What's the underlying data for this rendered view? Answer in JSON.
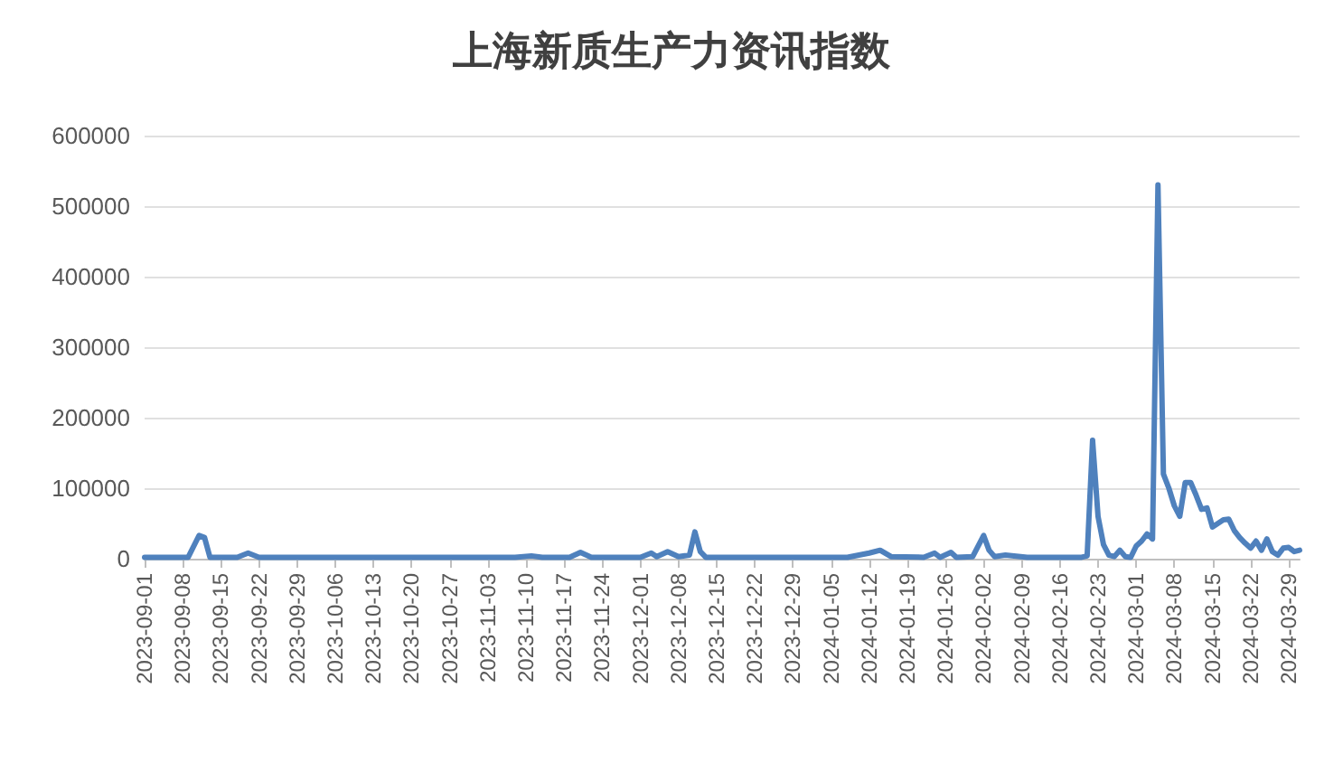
{
  "chart_data": {
    "type": "line",
    "title": "上海新质生产力资讯指数",
    "x": [
      "2023-09-01",
      "2023-09-09",
      "2023-09-11",
      "2023-09-12",
      "2023-09-13",
      "2023-09-18",
      "2023-09-20",
      "2023-09-22",
      "2023-11-08",
      "2023-11-11",
      "2023-11-13",
      "2023-11-18",
      "2023-11-20",
      "2023-11-22",
      "2023-12-01",
      "2023-12-03",
      "2023-12-04",
      "2023-12-06",
      "2023-12-08",
      "2023-12-10",
      "2023-12-11",
      "2023-12-12",
      "2023-12-13",
      "2024-01-08",
      "2024-01-12",
      "2024-01-14",
      "2024-01-16",
      "2024-01-22",
      "2024-01-24",
      "2024-01-25",
      "2024-01-27",
      "2024-01-28",
      "2024-01-31",
      "2024-02-02",
      "2024-02-03",
      "2024-02-04",
      "2024-02-06",
      "2024-02-10",
      "2024-02-20",
      "2024-02-21",
      "2024-02-22",
      "2024-02-23",
      "2024-02-24",
      "2024-02-25",
      "2024-02-26",
      "2024-02-27",
      "2024-02-28",
      "2024-02-29",
      "2024-03-01",
      "2024-03-02",
      "2024-03-03",
      "2024-03-04",
      "2024-03-05",
      "2024-03-06",
      "2024-03-07",
      "2024-03-08",
      "2024-03-09",
      "2024-03-10",
      "2024-03-11",
      "2024-03-12",
      "2024-03-13",
      "2024-03-14",
      "2024-03-15",
      "2024-03-16",
      "2024-03-17",
      "2024-03-18",
      "2024-03-19",
      "2024-03-20",
      "2024-03-21",
      "2024-03-22",
      "2024-03-23",
      "2024-03-24",
      "2024-03-25",
      "2024-03-26",
      "2024-03-27",
      "2024-03-28",
      "2024-03-29",
      "2024-03-30",
      "2024-03-31"
    ],
    "series": [
      {
        "color": "#4f81bd",
        "values": [
          2000,
          2000,
          33000,
          30000,
          2000,
          2000,
          8000,
          2000,
          2000,
          4000,
          2000,
          2000,
          9000,
          2000,
          2000,
          8000,
          3000,
          10000,
          3000,
          5000,
          38000,
          10000,
          2000,
          2000,
          8000,
          12000,
          3000,
          2000,
          8000,
          2000,
          9000,
          2000,
          3000,
          33000,
          12000,
          3000,
          5000,
          2000,
          2000,
          4000,
          168000,
          60000,
          20000,
          5000,
          3000,
          12000,
          3000,
          2000,
          18000,
          25000,
          35000,
          28000,
          530000,
          120000,
          100000,
          75000,
          60000,
          108000,
          108000,
          90000,
          70000,
          72000,
          45000,
          50000,
          55000,
          56000,
          40000,
          30000,
          22000,
          15000,
          25000,
          12000,
          28000,
          10000,
          5000,
          15000,
          16000,
          10000,
          12000
        ]
      }
    ],
    "xlim": [
      "2023-09-01",
      "2024-03-31"
    ],
    "xticks": [
      "2023-09-01",
      "2023-09-08",
      "2023-09-15",
      "2023-09-22",
      "2023-09-29",
      "2023-10-06",
      "2023-10-13",
      "2023-10-20",
      "2023-10-27",
      "2023-11-03",
      "2023-11-10",
      "2023-11-17",
      "2023-11-24",
      "2023-12-01",
      "2023-12-08",
      "2023-12-15",
      "2023-12-22",
      "2023-12-29",
      "2024-01-05",
      "2024-01-12",
      "2024-01-19",
      "2024-01-26",
      "2024-02-02",
      "2024-02-09",
      "2024-02-16",
      "2024-02-23",
      "2024-03-01",
      "2024-03-08",
      "2024-03-15",
      "2024-03-22",
      "2024-03-29"
    ],
    "ylim": [
      0,
      600000
    ],
    "yticks": [
      0,
      100000,
      200000,
      300000,
      400000,
      500000,
      600000
    ],
    "grid": "y",
    "marker": "none",
    "line_style": "solid"
  }
}
